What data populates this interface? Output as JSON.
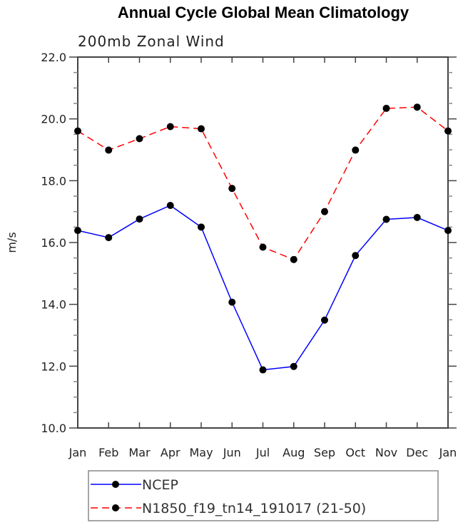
{
  "chart_data": {
    "type": "line",
    "title": "Annual Cycle Global Mean Climatology",
    "subtitle": "200mb Zonal Wind",
    "xlabel": "",
    "ylabel": "m/s",
    "categories": [
      "Jan",
      "Feb",
      "Mar",
      "Apr",
      "May",
      "Jun",
      "Jul",
      "Aug",
      "Sep",
      "Oct",
      "Nov",
      "Dec",
      "Jan"
    ],
    "ylim": [
      10.0,
      22.0
    ],
    "yticks": [
      "10.0",
      "12.0",
      "14.0",
      "16.0",
      "18.0",
      "20.0",
      "22.0"
    ],
    "grid": false,
    "legend_position": "bottom",
    "series": [
      {
        "name": "NCEP",
        "color": "#0000ff",
        "dash": "solid",
        "values": [
          16.39,
          16.16,
          16.76,
          17.2,
          16.5,
          14.07,
          11.88,
          11.99,
          13.49,
          15.58,
          16.75,
          16.81,
          16.39
        ]
      },
      {
        "name": "N1850_f19_tn14_191017 (21-50)",
        "color": "#ff0000",
        "dash": "dashed",
        "values": [
          19.61,
          18.99,
          19.36,
          19.75,
          19.68,
          17.75,
          15.85,
          15.45,
          17.0,
          18.99,
          20.34,
          20.38,
          19.61
        ]
      }
    ]
  }
}
